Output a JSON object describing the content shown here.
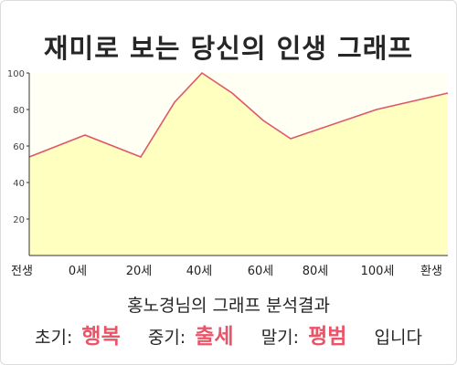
{
  "title": "재미로 보는 당신의 인생 그래프",
  "subtitle": "홍노경님의 그래프 분석결과",
  "result": {
    "early_label": "초기:",
    "early_value": "행복",
    "mid_label": "중기:",
    "mid_value": "출세",
    "late_label": "말기:",
    "late_value": "평범",
    "suffix": "입니다"
  },
  "colors": {
    "line": "#e0556a",
    "fill": "#ffffbf",
    "accent": "#ea5468"
  },
  "chart_data": {
    "type": "area",
    "title": "재미로 보는 당신의 인생 그래프",
    "x_tick_labels": [
      "전생",
      "0세",
      "20세",
      "40세",
      "60세",
      "80세",
      "100세",
      "환생"
    ],
    "y_ticks": [
      20,
      40,
      60,
      80,
      100
    ],
    "ylim": [
      0,
      100
    ],
    "grid": false,
    "series": [
      {
        "points": [
          {
            "x": "전생",
            "y": 54
          },
          {
            "x": "0세",
            "y": 66
          },
          {
            "x": "20세",
            "y": 54
          },
          {
            "x": "30세",
            "y": 84
          },
          {
            "x": "40세",
            "y": 100
          },
          {
            "x": "50세",
            "y": 89
          },
          {
            "x": "60세",
            "y": 74
          },
          {
            "x": "70세",
            "y": 64
          },
          {
            "x": "100세",
            "y": 80
          },
          {
            "x": "환생",
            "y": 89
          }
        ]
      }
    ]
  }
}
